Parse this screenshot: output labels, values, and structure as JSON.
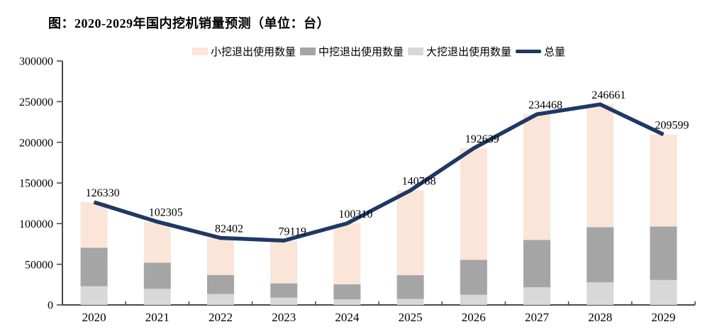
{
  "page": {
    "background": "#ffffff"
  },
  "title": "图：2020-2029年国内挖机销量预测（单位：台）",
  "legend": {
    "items": [
      {
        "label": "小挖退出使用数量",
        "color": "#FAE5D8",
        "marker": "swatch"
      },
      {
        "label": "中挖退出使用数量",
        "color": "#A5A5A5",
        "marker": "swatch"
      },
      {
        "label": "大挖退出使用数量",
        "color": "#D8D8D8",
        "marker": "swatch"
      },
      {
        "label": "总量",
        "color": "#1F3864",
        "marker": "line"
      }
    ]
  },
  "chart_data": {
    "type": "bar",
    "subtype": "stacked-bar-with-line",
    "title": "图：2020-2029年国内挖机销量预测（单位：台）",
    "unit": "台",
    "categories": [
      "2020",
      "2021",
      "2022",
      "2023",
      "2024",
      "2025",
      "2026",
      "2027",
      "2028",
      "2029"
    ],
    "bar_series_stack_order": "bottom_to_top",
    "bar_series": [
      {
        "name": "大挖退出使用数量",
        "color": "#D8D8D8",
        "values": [
          23000,
          19800,
          13400,
          8900,
          6800,
          7300,
          12500,
          21700,
          27800,
          30700
        ]
      },
      {
        "name": "中挖退出使用数量",
        "color": "#A5A5A5",
        "values": [
          47400,
          32200,
          23400,
          17600,
          18600,
          29300,
          43000,
          58300,
          67800,
          65800
        ]
      },
      {
        "name": "小挖退出使用数量",
        "color": "#FAE5D8",
        "values": [
          55930,
          50305,
          45602,
          52619,
          74910,
          104188,
          137139,
          154468,
          151061,
          113099
        ]
      }
    ],
    "line_series": {
      "name": "总量",
      "color": "#1F3864",
      "values": [
        126330,
        102305,
        82402,
        79119,
        100310,
        140788,
        192639,
        234468,
        246661,
        209599
      ],
      "data_labels": [
        "126330",
        "102305",
        "82402",
        "79119",
        "100310",
        "140788",
        "192639",
        "234468",
        "246661",
        "209599"
      ]
    },
    "xlabel": "",
    "ylabel": "",
    "ylim": [
      0,
      300000
    ],
    "ytick_step": 50000,
    "ytick_labels": [
      "0",
      "50000",
      "100000",
      "150000",
      "200000",
      "250000",
      "300000"
    ],
    "grid": false,
    "legend_position": "top",
    "axis_color": "#4a4a4a"
  }
}
